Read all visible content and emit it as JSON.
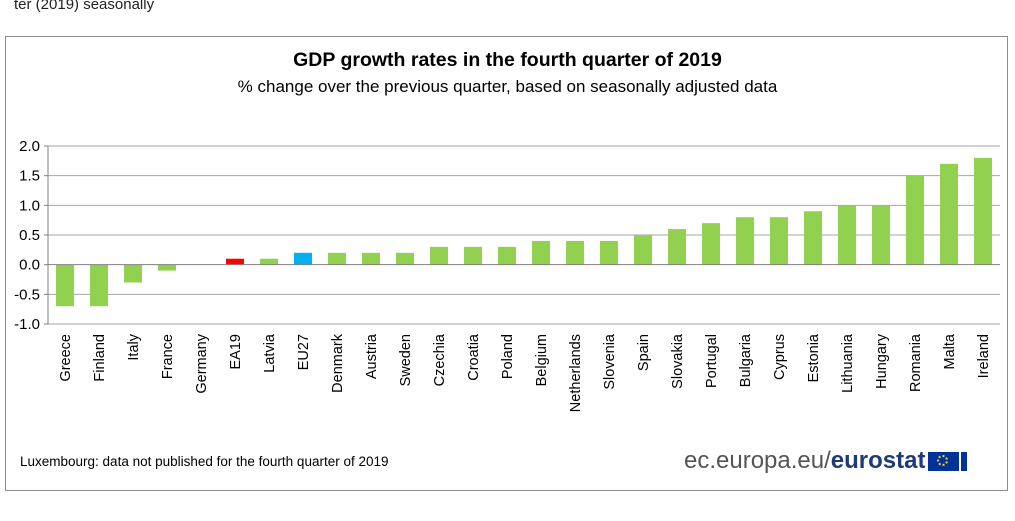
{
  "page": {
    "top_fragment": "ter (2019) seasonally",
    "footnote": "Luxembourg: data not published for the fourth quarter of 2019",
    "brand_prefix": "ec.europa.eu/",
    "brand_name": "eurostat"
  },
  "colors": {
    "bar": "#92d050",
    "ea19": "#ff0000",
    "eu27": "#00b0f0",
    "grid": "#a6a6a6",
    "axis": "#808080"
  },
  "chart_data": {
    "type": "bar",
    "title": "GDP growth rates in the fourth quarter of 2019",
    "subtitle": "% change over the previous quarter, based on seasonally adjusted data",
    "xlabel": "",
    "ylabel": "",
    "ylim": [
      -1.0,
      2.0
    ],
    "yticks": [
      "2.0",
      "1.5",
      "1.0",
      "0.5",
      "0.0",
      "-0.5",
      "-1.0"
    ],
    "ytick_values": [
      2.0,
      1.5,
      1.0,
      0.5,
      0.0,
      -0.5,
      -1.0
    ],
    "grid": true,
    "categories": [
      "Greece",
      "Finland",
      "Italy",
      "France",
      "Germany",
      "EA19",
      "Latvia",
      "EU27",
      "Denmark",
      "Austria",
      "Sweden",
      "Czechia",
      "Croatia",
      "Poland",
      "Belgium",
      "Netherlands",
      "Slovenia",
      "Spain",
      "Slovakia",
      "Portugal",
      "Bulgaria",
      "Cyprus",
      "Estonia",
      "Lithuania",
      "Hungary",
      "Romania",
      "Malta",
      "Ireland"
    ],
    "values": [
      -0.7,
      -0.7,
      -0.3,
      -0.1,
      0.0,
      0.1,
      0.1,
      0.2,
      0.2,
      0.2,
      0.2,
      0.3,
      0.3,
      0.3,
      0.4,
      0.4,
      0.4,
      0.5,
      0.6,
      0.7,
      0.8,
      0.8,
      0.9,
      1.0,
      1.0,
      1.5,
      1.7,
      1.8
    ],
    "highlight": {
      "EA19": "ea19",
      "EU27": "eu27"
    }
  }
}
